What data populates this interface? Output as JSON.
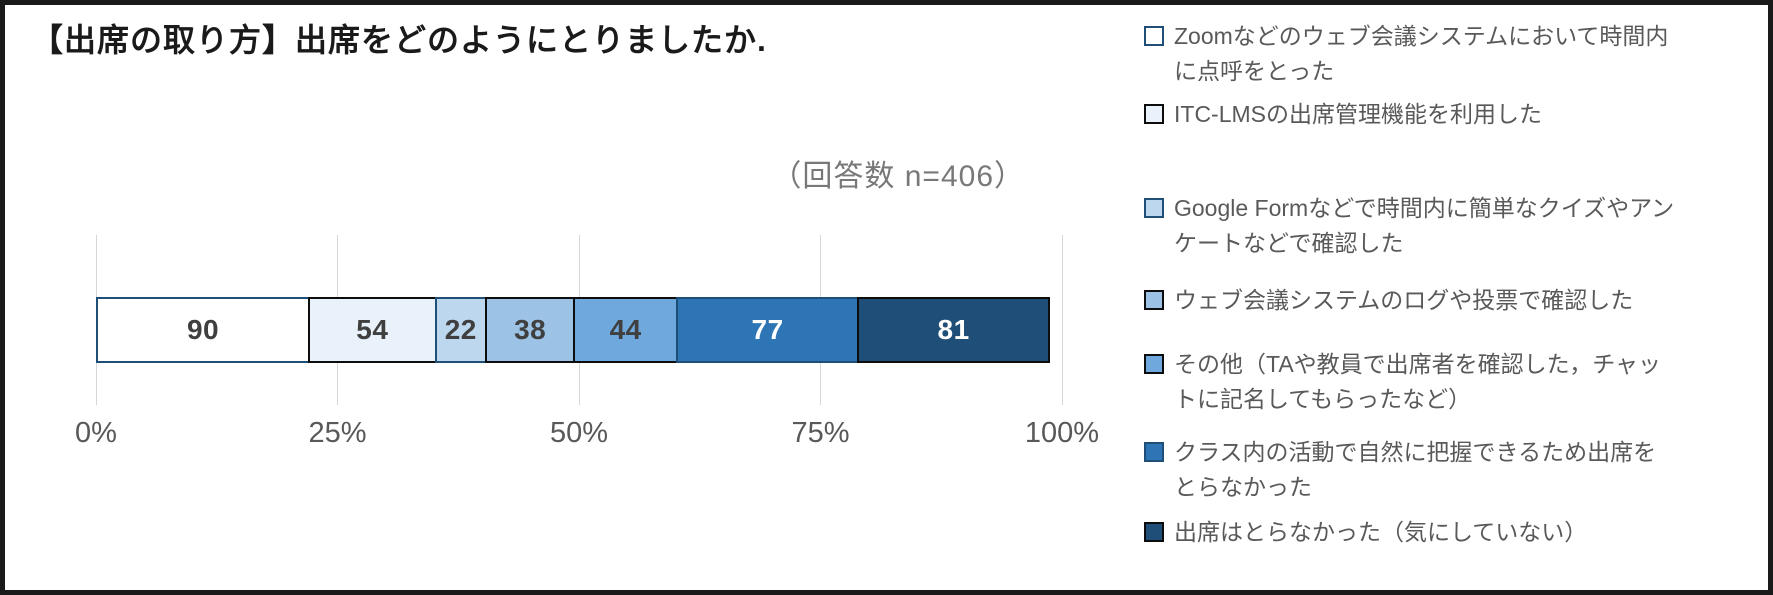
{
  "title": "【出席の取り方】出席をどのようにとりましたか.",
  "annotation": "（回答数 n=406）",
  "chart_data": {
    "type": "bar",
    "subtype": "stacked-horizontal-100pct",
    "title": "【出席の取り方】出席をどのようにとりましたか.",
    "note": "（回答数 n=406）",
    "n_total": 406,
    "x_ticks": [
      "0%",
      "25%",
      "50%",
      "75%",
      "100%"
    ],
    "xlim": [
      0,
      100
    ],
    "grid": true,
    "legend_position": "right",
    "series": [
      {
        "name": "Zoomなどのウェブ会議システムにおいて時間内に点呼をとった",
        "value": 90,
        "fill": "#ffffff",
        "border": "#1f4e79",
        "label_color": "#3f3f3f"
      },
      {
        "name": "ITC-LMSの出席管理機能を利用した",
        "value": 54,
        "fill": "#e9f2fa",
        "border": "#0d0d0d",
        "label_color": "#3f3f3f"
      },
      {
        "name": "Google Formなどで時間内に簡単なクイズやアンケートなどで確認した",
        "value": 22,
        "fill": "#bdd7ee",
        "border": "#1f4e79",
        "label_color": "#3f3f3f"
      },
      {
        "name": "ウェブ会議システムのログや投票で確認した",
        "value": 38,
        "fill": "#9cc2e5",
        "border": "#0d0d0d",
        "label_color": "#3f3f3f"
      },
      {
        "name": "その他（TAや教員で出席者を確認した，チャットに記名してもらったなど）",
        "value": 44,
        "fill": "#6fa8dc",
        "border": "#0d0d0d",
        "label_color": "#3f3f3f"
      },
      {
        "name": "クラス内の活動で自然に把握できるため出席をとらなかった",
        "value": 77,
        "fill": "#2e75b6",
        "border": "#1f4e79",
        "label_color": "#ffffff"
      },
      {
        "name": "出席はとらなかった（気にしていない）",
        "value": 81,
        "fill": "#1f4e79",
        "border": "#0d0d0d",
        "label_color": "#ffffff"
      }
    ]
  }
}
